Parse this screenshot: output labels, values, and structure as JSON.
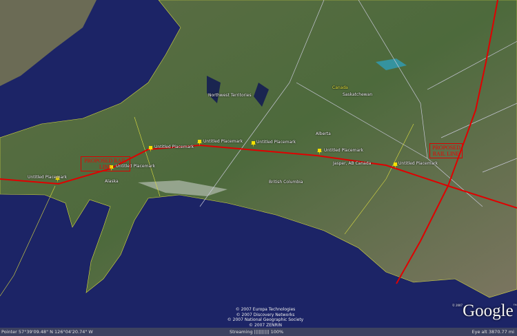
{
  "map": {
    "placemarks": [
      "Untitled Placemark",
      "Untitled Placemark",
      "Untitled Placemark",
      "Untitled Placemark",
      "Untitled Placemark",
      "Untitled Placemark",
      "Untitled Placemark"
    ],
    "places": {
      "alaska": "Alaska",
      "british_columbia": "British Columbia",
      "alberta": "Alberta",
      "canada": "Canada",
      "saskatchewan": "Saskatchewan",
      "northwest_territories": "Northwest Territories",
      "jasper": "Jasper, AB Canada"
    },
    "annotations": [
      "PROPOSED RAIL LINE",
      "PROPOSED RAIL LINE"
    ],
    "route_color": "#e00000"
  },
  "copyright": [
    "© 2007 Europa Technologies",
    "© 2007 Discovery Networks",
    "© 2007 National Geographic Society",
    "© 2007 ZENRIN"
  ],
  "logo": {
    "year": "© 2007",
    "text": "Google",
    "tm": "™"
  },
  "status": {
    "pointer": "Pointer   57°39'09.48\" N  126°04'20.74\" W",
    "streaming": "Streaming |||||||||| 100%",
    "eye_alt": "Eye alt   3870.77 mi"
  }
}
